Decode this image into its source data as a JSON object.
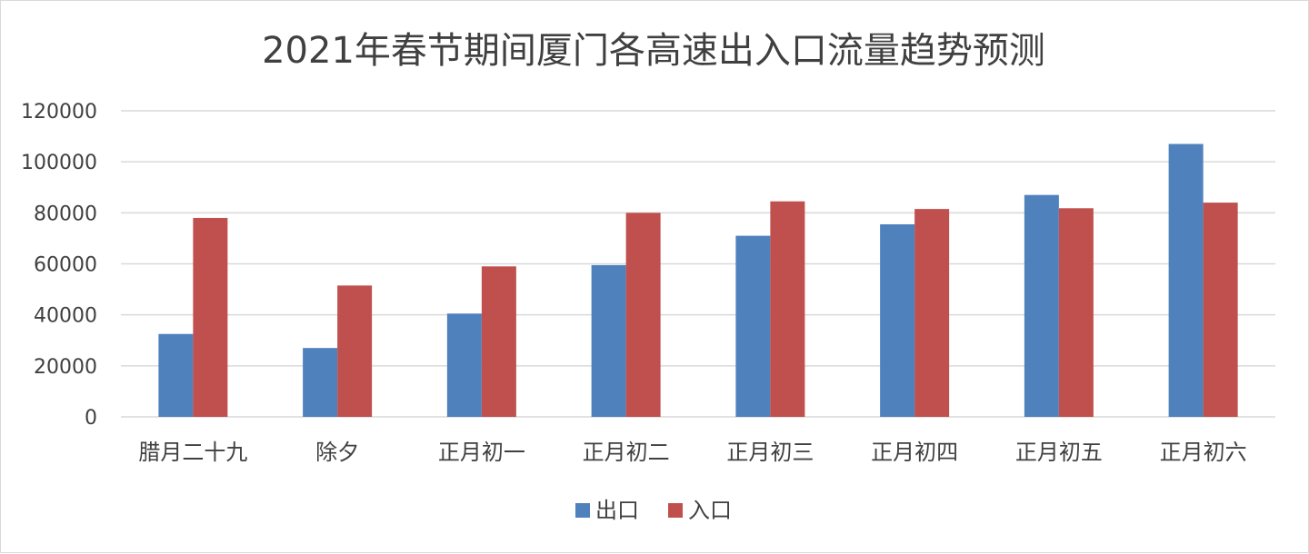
{
  "chart_data": {
    "type": "bar",
    "title": "2021年春节期间厦门各高速出入口流量趋势预测",
    "xlabel": "",
    "ylabel": "",
    "categories": [
      "腊月二十九",
      "除夕",
      "正月初一",
      "正月初二",
      "正月初三",
      "正月初四",
      "正月初五",
      "正月初六"
    ],
    "series": [
      {
        "name": "出口",
        "color": "#4f81bd",
        "values": [
          32500,
          27000,
          40500,
          59500,
          71000,
          75500,
          87000,
          107000
        ]
      },
      {
        "name": "入口",
        "color": "#c0504d",
        "values": [
          78000,
          51500,
          59000,
          80000,
          84500,
          81500,
          81800,
          84000
        ]
      }
    ],
    "ylim": [
      0,
      120000
    ],
    "yticks": [
      "0",
      "20000",
      "40000",
      "60000",
      "80000",
      "100000",
      "120000"
    ],
    "grid": true,
    "legend_position": "bottom"
  }
}
